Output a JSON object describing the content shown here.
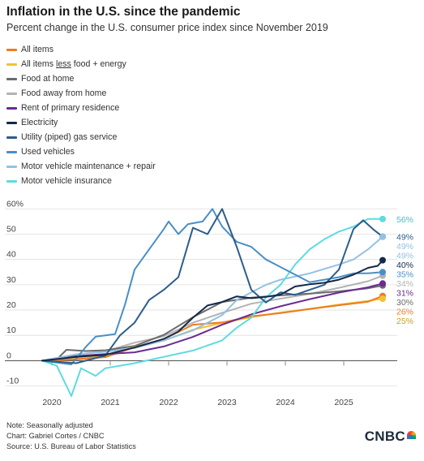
{
  "title": "Inflation in the U.S. since the pandemic",
  "subtitle": "Percent change in the U.S. consumer price index since November 2019",
  "legend": [
    {
      "label_pre": "All items",
      "label_u": "",
      "label_post": "",
      "color": "#ec7c23"
    },
    {
      "label_pre": "All items ",
      "label_u": "less",
      "label_post": " food + energy",
      "color": "#f2c230"
    },
    {
      "label_pre": "Food at home",
      "label_u": "",
      "label_post": "",
      "color": "#6b6b6b"
    },
    {
      "label_pre": "Food away from home",
      "label_u": "",
      "label_post": "",
      "color": "#b3b3b3"
    },
    {
      "label_pre": "Rent of primary residence",
      "label_u": "",
      "label_post": "",
      "color": "#6a2c91"
    },
    {
      "label_pre": "Electricity",
      "label_u": "",
      "label_post": "",
      "color": "#14294a"
    },
    {
      "label_pre": "Utility (piped) gas service",
      "label_u": "",
      "label_post": "",
      "color": "#2c5d8a"
    },
    {
      "label_pre": "Used vehicles",
      "label_u": "",
      "label_post": "",
      "color": "#4a8fc4"
    },
    {
      "label_pre": "Motor vehicle maintenance + repair",
      "label_u": "",
      "label_post": "",
      "color": "#93c1e4"
    },
    {
      "label_pre": "Motor vehicle insurance",
      "label_u": "",
      "label_post": "",
      "color": "#5ddbe0"
    }
  ],
  "chart_data": {
    "type": "line",
    "x_ticks": [
      "2020",
      "2021",
      "2022",
      "2023",
      "2024",
      "2025"
    ],
    "y_ticks": [
      "60%",
      "50",
      "40",
      "30",
      "20",
      "10",
      "0",
      "-10"
    ],
    "y_tick_values": [
      60,
      50,
      40,
      30,
      20,
      10,
      0,
      -10
    ],
    "ylim": [
      -14,
      63
    ],
    "xlim": [
      "2019-09",
      "2025-12"
    ],
    "series": [
      {
        "name": "All items",
        "color": "#ec7c23",
        "end_label": "26%",
        "end_value": 26,
        "points": [
          [
            "2019-11",
            0
          ],
          [
            "2020-06",
            0.5
          ],
          [
            "2020-12",
            1.4
          ],
          [
            "2021-06",
            5.3
          ],
          [
            "2021-12",
            8.5
          ],
          [
            "2022-06",
            14.2
          ],
          [
            "2022-12",
            15.1
          ],
          [
            "2023-06",
            17.5
          ],
          [
            "2023-12",
            18.8
          ],
          [
            "2024-06",
            20.4
          ],
          [
            "2024-12",
            21.9
          ],
          [
            "2025-06",
            23.3
          ],
          [
            "2025-09",
            25.6
          ]
        ]
      },
      {
        "name": "All items less food + energy",
        "color": "#f2c230",
        "end_label": "25%",
        "end_value": 25,
        "points": [
          [
            "2019-11",
            0
          ],
          [
            "2020-06",
            0.8
          ],
          [
            "2020-12",
            1.7
          ],
          [
            "2021-06",
            5.4
          ],
          [
            "2021-12",
            7.9
          ],
          [
            "2022-06",
            12.2
          ],
          [
            "2022-12",
            14.9
          ],
          [
            "2023-06",
            17.2
          ],
          [
            "2023-12",
            19.0
          ],
          [
            "2024-06",
            20.5
          ],
          [
            "2024-12",
            22.2
          ],
          [
            "2025-06",
            23.6
          ],
          [
            "2025-09",
            24.5
          ]
        ]
      },
      {
        "name": "Food at home",
        "color": "#6b6b6b",
        "end_label": "30%",
        "end_value": 30,
        "points": [
          [
            "2019-11",
            0
          ],
          [
            "2020-02",
            0.5
          ],
          [
            "2020-04",
            4.3
          ],
          [
            "2020-08",
            3.8
          ],
          [
            "2020-12",
            4.1
          ],
          [
            "2021-06",
            5.8
          ],
          [
            "2021-12",
            10.2
          ],
          [
            "2022-06",
            17.2
          ],
          [
            "2022-12",
            23.2
          ],
          [
            "2023-06",
            24.9
          ],
          [
            "2023-12",
            25.8
          ],
          [
            "2024-06",
            26.5
          ],
          [
            "2024-12",
            27.4
          ],
          [
            "2025-06",
            28.6
          ],
          [
            "2025-09",
            29.7
          ]
        ]
      },
      {
        "name": "Food away from home",
        "color": "#b3b3b3",
        "end_label": "34%",
        "end_value": 34,
        "points": [
          [
            "2019-11",
            0
          ],
          [
            "2020-06",
            2.5
          ],
          [
            "2020-12",
            3.7
          ],
          [
            "2021-06",
            7.1
          ],
          [
            "2021-12",
            9.6
          ],
          [
            "2022-06",
            15.0
          ],
          [
            "2022-12",
            18.9
          ],
          [
            "2023-06",
            22.5
          ],
          [
            "2023-12",
            24.5
          ],
          [
            "2024-06",
            26.4
          ],
          [
            "2024-12",
            28.8
          ],
          [
            "2025-06",
            31.4
          ],
          [
            "2025-09",
            33.6
          ]
        ]
      },
      {
        "name": "Rent of primary residence",
        "color": "#6a2c91",
        "end_label": "31%",
        "end_value": 31,
        "points": [
          [
            "2019-11",
            0
          ],
          [
            "2020-06",
            1.8
          ],
          [
            "2020-12",
            2.6
          ],
          [
            "2021-06",
            3.3
          ],
          [
            "2021-12",
            5.6
          ],
          [
            "2022-06",
            9.4
          ],
          [
            "2022-12",
            14.2
          ],
          [
            "2023-06",
            18.3
          ],
          [
            "2023-12",
            21.5
          ],
          [
            "2024-06",
            24.3
          ],
          [
            "2024-12",
            26.9
          ],
          [
            "2025-06",
            29.0
          ],
          [
            "2025-09",
            30.5
          ]
        ]
      },
      {
        "name": "Electricity",
        "color": "#14294a",
        "end_label": "40%",
        "end_value": 40,
        "points": [
          [
            "2019-11",
            0
          ],
          [
            "2020-06",
            1.5
          ],
          [
            "2020-12",
            2.3
          ],
          [
            "2021-06",
            5.2
          ],
          [
            "2021-12",
            8.6
          ],
          [
            "2022-03",
            11.5
          ],
          [
            "2022-06",
            17.0
          ],
          [
            "2022-09",
            21.8
          ],
          [
            "2022-12",
            23.2
          ],
          [
            "2023-03",
            25.4
          ],
          [
            "2023-06",
            24.7
          ],
          [
            "2023-09",
            25.2
          ],
          [
            "2023-12",
            26.1
          ],
          [
            "2024-03",
            29.3
          ],
          [
            "2024-06",
            30.2
          ],
          [
            "2024-09",
            30.8
          ],
          [
            "2024-12",
            32.0
          ],
          [
            "2025-03",
            34.0
          ],
          [
            "2025-06",
            36.7
          ],
          [
            "2025-08",
            37.5
          ],
          [
            "2025-09",
            39.7
          ]
        ]
      },
      {
        "name": "Utility (piped) gas service",
        "color": "#2c5d8a",
        "end_label": "49%",
        "end_value": 49,
        "points": [
          [
            "2019-11",
            0
          ],
          [
            "2020-06",
            -1.0
          ],
          [
            "2020-12",
            2.0
          ],
          [
            "2021-03",
            10.0
          ],
          [
            "2021-06",
            15.0
          ],
          [
            "2021-09",
            24.0
          ],
          [
            "2021-12",
            28.0
          ],
          [
            "2022-03",
            33.0
          ],
          [
            "2022-06",
            52.5
          ],
          [
            "2022-09",
            50.0
          ],
          [
            "2022-12",
            60.0
          ],
          [
            "2023-03",
            45.0
          ],
          [
            "2023-06",
            28.0
          ],
          [
            "2023-09",
            23.0
          ],
          [
            "2023-12",
            27.0
          ],
          [
            "2024-03",
            26.0
          ],
          [
            "2024-06",
            28.0
          ],
          [
            "2024-09",
            30.0
          ],
          [
            "2024-12",
            36.0
          ],
          [
            "2025-03",
            52.0
          ],
          [
            "2025-05",
            55.5
          ],
          [
            "2025-07",
            52.0
          ],
          [
            "2025-09",
            49.0
          ]
        ]
      },
      {
        "name": "Used vehicles",
        "color": "#4a8fc4",
        "end_label": "35%",
        "end_value": 35,
        "points": [
          [
            "2019-11",
            0
          ],
          [
            "2020-05",
            -1.5
          ],
          [
            "2020-08",
            5.5
          ],
          [
            "2020-10",
            9.5
          ],
          [
            "2020-12",
            10.0
          ],
          [
            "2021-02",
            10.5
          ],
          [
            "2021-04",
            22.0
          ],
          [
            "2021-06",
            36.0
          ],
          [
            "2021-09",
            44.0
          ],
          [
            "2021-12",
            52.0
          ],
          [
            "2022-01",
            55.0
          ],
          [
            "2022-03",
            50.0
          ],
          [
            "2022-05",
            54.0
          ],
          [
            "2022-08",
            55.0
          ],
          [
            "2022-10",
            60.0
          ],
          [
            "2022-12",
            53.0
          ],
          [
            "2023-03",
            47.0
          ],
          [
            "2023-06",
            45.0
          ],
          [
            "2023-09",
            40.0
          ],
          [
            "2023-12",
            37.0
          ],
          [
            "2024-03",
            34.0
          ],
          [
            "2024-06",
            31.0
          ],
          [
            "2024-09",
            32.0
          ],
          [
            "2024-12",
            33.0
          ],
          [
            "2025-03",
            34.5
          ],
          [
            "2025-06",
            34.5
          ],
          [
            "2025-09",
            35.0
          ]
        ]
      },
      {
        "name": "Motor vehicle maintenance + repair",
        "color": "#93c1e4",
        "end_label": "49%",
        "end_value": 49,
        "points": [
          [
            "2019-11",
            0
          ],
          [
            "2020-06",
            2.5
          ],
          [
            "2020-12",
            3.5
          ],
          [
            "2021-06",
            5.0
          ],
          [
            "2021-12",
            8.0
          ],
          [
            "2022-06",
            12.0
          ],
          [
            "2022-12",
            18.0
          ],
          [
            "2023-03",
            24.0
          ],
          [
            "2023-06",
            27.0
          ],
          [
            "2023-09",
            30.0
          ],
          [
            "2023-12",
            32.0
          ],
          [
            "2024-06",
            34.5
          ],
          [
            "2024-12",
            38.0
          ],
          [
            "2025-03",
            40.0
          ],
          [
            "2025-06",
            44.0
          ],
          [
            "2025-09",
            49.0
          ]
        ]
      },
      {
        "name": "Motor vehicle insurance",
        "color": "#5ddbe0",
        "end_label": "56%",
        "end_value": 56,
        "points": [
          [
            "2019-11",
            0
          ],
          [
            "2020-02",
            -2.0
          ],
          [
            "2020-05",
            -14.0
          ],
          [
            "2020-07",
            -3.0
          ],
          [
            "2020-10",
            -6.0
          ],
          [
            "2020-12",
            -3.0
          ],
          [
            "2021-06",
            -1.0
          ],
          [
            "2021-12",
            1.5
          ],
          [
            "2022-06",
            4.0
          ],
          [
            "2022-12",
            8.0
          ],
          [
            "2023-03",
            13.0
          ],
          [
            "2023-06",
            17.0
          ],
          [
            "2023-09",
            25.0
          ],
          [
            "2023-12",
            30.0
          ],
          [
            "2024-03",
            38.0
          ],
          [
            "2024-06",
            44.0
          ],
          [
            "2024-09",
            48.0
          ],
          [
            "2024-12",
            51.0
          ],
          [
            "2025-03",
            53.0
          ],
          [
            "2025-06",
            56.0
          ],
          [
            "2025-09",
            56.0
          ]
        ]
      }
    ],
    "extra_end_labels": [
      {
        "label": "49%",
        "value": 49,
        "color": "#93c1e4"
      }
    ],
    "grid": "horizontal",
    "legend_position": "top-left"
  },
  "footer": {
    "note": "Note: Seasonally adjusted",
    "credit": "Chart: Gabriel Cortes / CNBC",
    "source": "Source: U.S. Bureau of Labor Statistics"
  },
  "brand": "CNBC"
}
